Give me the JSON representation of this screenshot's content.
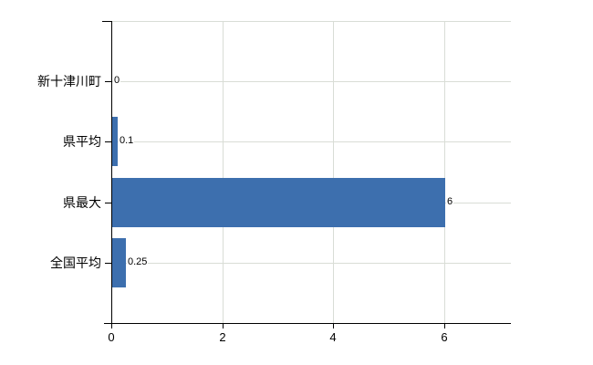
{
  "chart_data": {
    "type": "bar",
    "orientation": "horizontal",
    "title": "",
    "categories": [
      "新十津川町",
      "県平均",
      "県最大",
      "全国平均"
    ],
    "values": [
      0,
      0.1,
      6,
      0.25
    ],
    "value_labels": [
      "0",
      "0.1",
      "6",
      "0.25"
    ],
    "xticks": [
      0,
      2,
      4,
      6
    ],
    "xtick_labels": [
      "0",
      "2",
      "4",
      "6"
    ],
    "xlim": [
      0,
      7.2
    ],
    "grid": true,
    "legend_position": "none",
    "colors": {
      "bar": "#3d6fae",
      "grid": "#d9ddd6",
      "axis": "#000000",
      "text": "#000000",
      "background": "#ffffff"
    }
  }
}
